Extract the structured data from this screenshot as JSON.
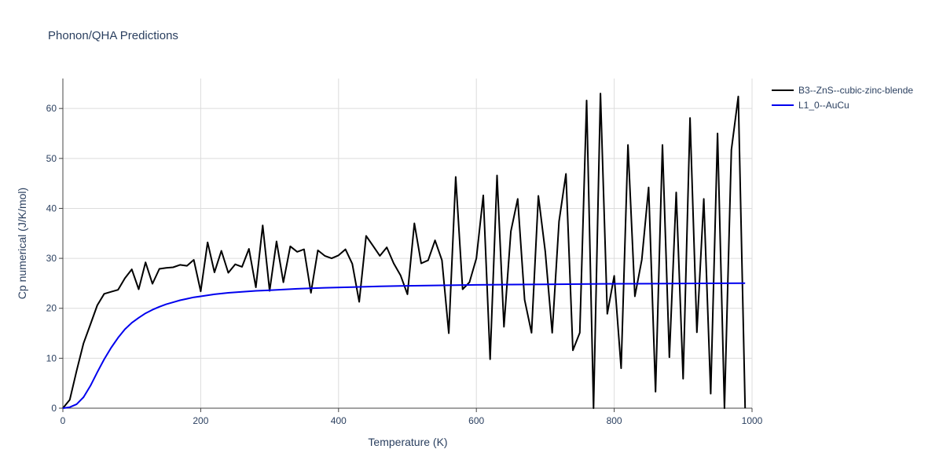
{
  "chart_data": {
    "type": "line",
    "title": "Phonon/QHA Predictions",
    "xlabel": "Temperature (K)",
    "ylabel": "Cp numerical (J/K/mol)",
    "xlim": [
      0,
      1000
    ],
    "ylim": [
      0,
      66
    ],
    "x_ticks": [
      0,
      200,
      400,
      600,
      800,
      1000
    ],
    "y_ticks": [
      0,
      10,
      20,
      30,
      40,
      50,
      60
    ],
    "grid": true,
    "legend_position": "top-right",
    "series": [
      {
        "name": "B3--ZnS--cubic-zinc-blende",
        "color": "#000000",
        "x": [
          0,
          10,
          20,
          30,
          40,
          50,
          60,
          70,
          80,
          90,
          100,
          110,
          120,
          130,
          140,
          150,
          160,
          170,
          180,
          190,
          200,
          210,
          220,
          230,
          240,
          250,
          260,
          270,
          280,
          290,
          300,
          310,
          320,
          330,
          340,
          350,
          360,
          370,
          380,
          390,
          400,
          410,
          420,
          430,
          440,
          450,
          460,
          470,
          480,
          490,
          500,
          510,
          520,
          530,
          540,
          550,
          560,
          570,
          580,
          590,
          600,
          610,
          620,
          630,
          640,
          650,
          660,
          670,
          680,
          690,
          700,
          710,
          720,
          730,
          740,
          750,
          760,
          770,
          780,
          790,
          800,
          810,
          820,
          830,
          840,
          850,
          860,
          870,
          880,
          890,
          900,
          910,
          920,
          930,
          940,
          950,
          960,
          970,
          980,
          990
        ],
        "y": [
          0,
          1.7,
          7.5,
          13.0,
          16.8,
          20.6,
          22.9,
          23.3,
          23.7,
          26.0,
          27.8,
          23.8,
          29.2,
          24.9,
          27.9,
          28.1,
          28.2,
          28.7,
          28.5,
          29.7,
          23.4,
          33.2,
          27.2,
          31.5,
          27.1,
          28.8,
          28.3,
          31.9,
          24.2,
          36.6,
          23.5,
          33.4,
          25.2,
          32.4,
          31.3,
          31.8,
          23.1,
          31.6,
          30.5,
          30.0,
          30.6,
          31.8,
          28.9,
          21.3,
          34.5,
          32.5,
          30.5,
          32.2,
          29.0,
          26.6,
          22.8,
          37.0,
          29.0,
          29.6,
          33.6,
          29.6,
          15.0,
          46.3,
          23.8,
          25.2,
          30.0,
          42.6,
          9.8,
          46.6,
          16.3,
          35.4,
          41.9,
          21.7,
          15.1,
          42.5,
          31.3,
          15.1,
          37.4,
          46.9,
          11.6,
          15.1,
          61.6,
          0,
          63.0,
          18.9,
          26.5,
          8.0,
          52.7,
          22.4,
          29.7,
          44.2,
          3.3,
          52.7,
          10.2,
          43.2,
          5.9,
          58.1,
          15.2,
          41.9,
          2.9,
          55.0,
          0,
          51.7,
          62.4,
          0
        ]
      },
      {
        "name": "L1_0--AuCu",
        "color": "#0000ee",
        "x": [
          0,
          10,
          20,
          30,
          40,
          50,
          60,
          70,
          80,
          90,
          100,
          110,
          120,
          130,
          140,
          150,
          160,
          170,
          180,
          190,
          200,
          220,
          240,
          260,
          280,
          300,
          340,
          380,
          420,
          460,
          500,
          550,
          600,
          650,
          700,
          750,
          800,
          850,
          900,
          950,
          990
        ],
        "y": [
          0,
          0.2,
          0.8,
          2.2,
          4.5,
          7.2,
          9.8,
          12.1,
          14.1,
          15.8,
          17.1,
          18.1,
          19.0,
          19.7,
          20.3,
          20.8,
          21.2,
          21.6,
          21.9,
          22.2,
          22.4,
          22.8,
          23.1,
          23.3,
          23.5,
          23.6,
          23.9,
          24.1,
          24.25,
          24.4,
          24.5,
          24.6,
          24.68,
          24.75,
          24.8,
          24.85,
          24.9,
          24.93,
          24.97,
          25.0,
          25.02
        ]
      }
    ]
  }
}
